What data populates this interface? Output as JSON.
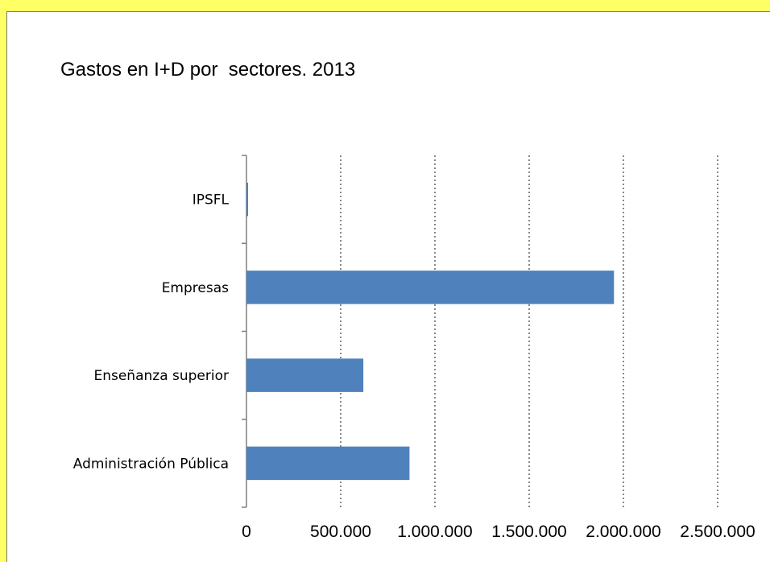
{
  "chart_data": {
    "type": "bar",
    "orientation": "horizontal",
    "title": "Gastos en I+D por  sectores. 2013",
    "categories": [
      "IPSFL",
      "Empresas",
      "Enseñanza superior",
      "Administración Pública"
    ],
    "values": [
      8000,
      1950000,
      620000,
      865000
    ],
    "xlim": [
      0,
      2500000
    ],
    "x_ticks": [
      "0",
      "500.000",
      "1.000.000",
      "1.500.000",
      "2.000.000",
      "2.500.000"
    ],
    "x_tick_values": [
      0,
      500000,
      1000000,
      1500000,
      2000000,
      2500000
    ],
    "grid": "vertical-dotted",
    "legend": "none",
    "bar_color": "#4f81bd",
    "background": "#ffff66"
  }
}
